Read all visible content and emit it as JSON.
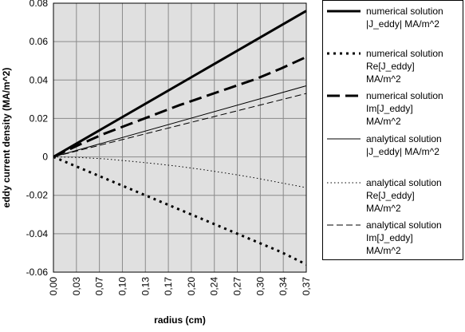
{
  "chart_data": {
    "type": "line",
    "xlabel": "radius (cm)",
    "ylabel": "eddy current density (MA/m^2)",
    "xlim": [
      0,
      0.37
    ],
    "ylim": [
      -0.06,
      0.08
    ],
    "x_tick_labels": [
      "0,00",
      "0,03",
      "0,07",
      "0,10",
      "0,13",
      "0,17",
      "0,20",
      "0,24",
      "0,27",
      "0,30",
      "0,34",
      "0,37"
    ],
    "y_tick_labels": [
      "0.08",
      "0.06",
      "0.04",
      "0.02",
      "0",
      "-0.02",
      "-0.04",
      "-0.06"
    ],
    "y_tick_values": [
      0.08,
      0.06,
      0.04,
      0.02,
      0,
      -0.02,
      -0.04,
      -0.06
    ],
    "grid": true,
    "plot_background": "#e0e0e0",
    "legend_position": "right",
    "series": [
      {
        "name_lines": [
          "numerical solution",
          "|J_eddy| MA/m^2"
        ],
        "style": "solid",
        "width": 3,
        "x": [
          0,
          0.37
        ],
        "y": [
          0,
          0.076
        ]
      },
      {
        "name_lines": [
          "numerical solution",
          "Re[J_eddy]",
          "MA/m^2"
        ],
        "style": "dotted",
        "width": 3,
        "x": [
          0,
          0.037,
          0.074,
          0.111,
          0.148,
          0.185,
          0.222,
          0.259,
          0.296,
          0.333,
          0.37
        ],
        "y": [
          0,
          -0.0055,
          -0.011,
          -0.0165,
          -0.022,
          -0.0275,
          -0.033,
          -0.0385,
          -0.044,
          -0.0495,
          -0.056
        ]
      },
      {
        "name_lines": [
          "numerical solution",
          "Im[J_eddy]",
          "MA/m^2"
        ],
        "style": "dashed",
        "width": 3,
        "x": [
          0,
          0.037,
          0.074,
          0.111,
          0.148,
          0.185,
          0.222,
          0.259,
          0.296,
          0.333,
          0.37
        ],
        "y": [
          0,
          0.0062,
          0.012,
          0.017,
          0.022,
          0.027,
          0.0315,
          0.036,
          0.0405,
          0.046,
          0.052
        ]
      },
      {
        "name_lines": [
          "analytical solution",
          "|J_eddy| MA/m^2"
        ],
        "style": "solid",
        "width": 1,
        "x": [
          0,
          0.37
        ],
        "y": [
          0,
          0.037
        ]
      },
      {
        "name_lines": [
          "analytical solution",
          "Re[J_eddy]",
          "MA/m^2"
        ],
        "style": "dotted",
        "width": 1,
        "x": [
          0,
          0.037,
          0.074,
          0.111,
          0.148,
          0.185,
          0.222,
          0.259,
          0.296,
          0.333,
          0.37
        ],
        "y": [
          0,
          -0.0003,
          -0.001,
          -0.0022,
          -0.0035,
          -0.005,
          -0.0068,
          -0.0088,
          -0.011,
          -0.0135,
          -0.016
        ]
      },
      {
        "name_lines": [
          "analytical solution",
          "Im[J_eddy]",
          "MA/m^2"
        ],
        "style": "dashed",
        "width": 1,
        "x": [
          0,
          0.37
        ],
        "y": [
          0,
          0.033
        ]
      }
    ]
  }
}
